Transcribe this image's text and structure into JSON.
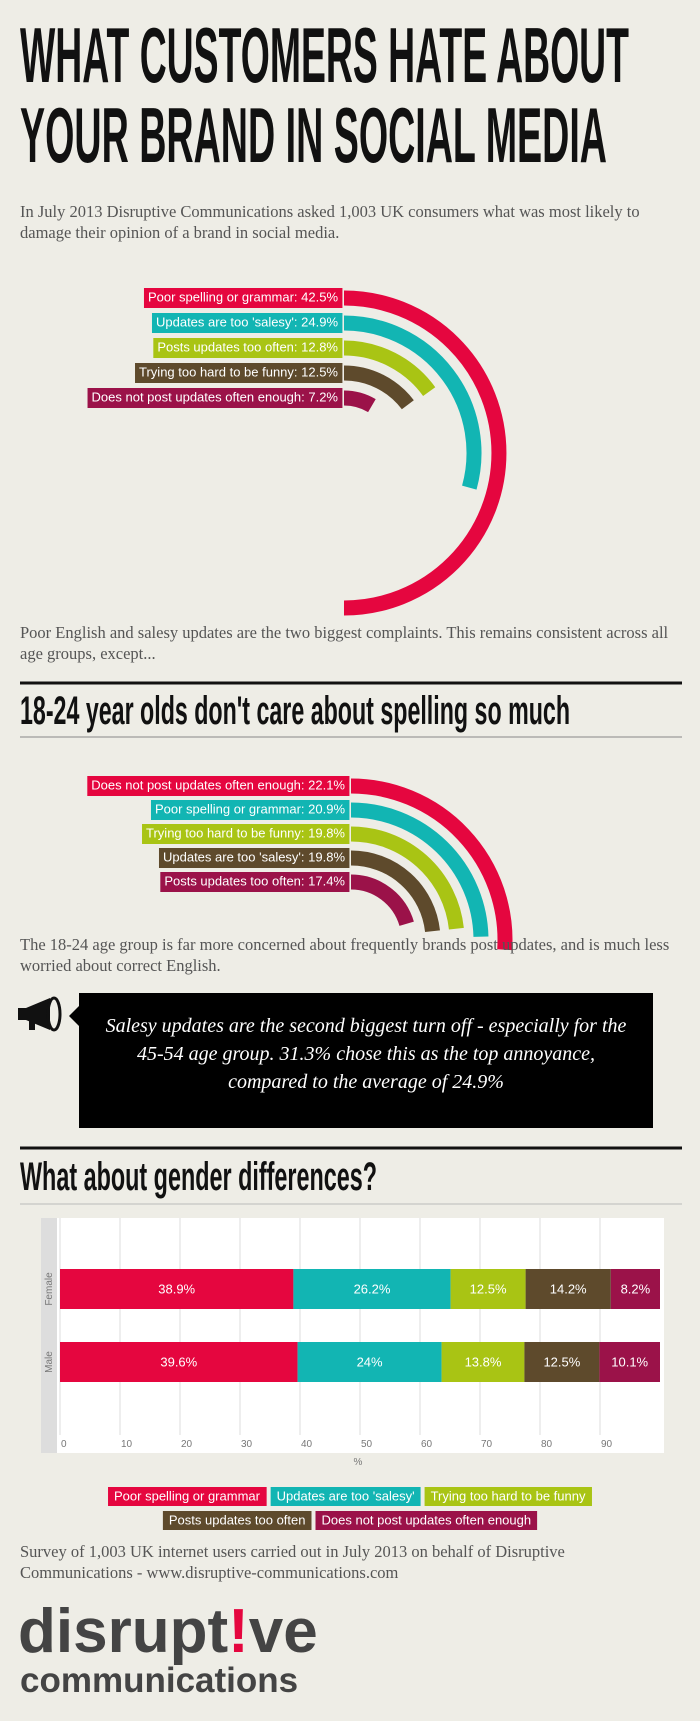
{
  "header": {
    "title": [
      "WHAT CUSTOMERS HATE ABOUT",
      "YOUR BRAND IN SOCIAL MEDIA"
    ],
    "intro": "In July 2013 Disruptive Communications asked 1,003 UK consumers what was most likely to damage their opinion of a brand in social media."
  },
  "chart_data": [
    {
      "type": "radial_bar",
      "rlim": [
        0,
        85
      ],
      "values": [
        42.5,
        24.9,
        12.8,
        12.5,
        7.2
      ],
      "value_labels": [
        "Poor spelling or grammar: 42.5%",
        "Updates are too 'salesy': 24.9%",
        "Posts updates too often: 12.8%",
        "Trying too hard to be funny: 12.5%",
        "Does not post updates often enough: 7.2%"
      ],
      "colors": [
        "#e5063f",
        "#12b5b3",
        "#a9c414",
        "#5e4a2c",
        "#9b1249"
      ]
    },
    {
      "type": "radial_bar",
      "title": "18-24 year olds don't care about spelling so much",
      "rlim": [
        0,
        85
      ],
      "values": [
        22.1,
        20.9,
        19.8,
        19.8,
        17.4
      ],
      "value_labels": [
        "Does not post updates often enough: 22.1%",
        "Poor spelling or grammar: 20.9%",
        "Trying too hard to be funny: 19.8%",
        "Updates are too 'salesy': 19.8%",
        "Posts updates too often: 17.4%"
      ],
      "colors": [
        "#e5063f",
        "#12b5b3",
        "#a9c414",
        "#5e4a2c",
        "#9b1249"
      ]
    },
    {
      "type": "stacked_barh",
      "title": "What about gender differences?",
      "categories": [
        "Female",
        "Male"
      ],
      "series": [
        {
          "name": "Poor spelling or grammar",
          "color": "#e5063f",
          "values": [
            38.9,
            39.6
          ],
          "value_labels": [
            "38.9%",
            "39.6%"
          ]
        },
        {
          "name": "Updates are too 'salesy'",
          "color": "#12b5b3",
          "values": [
            26.2,
            24
          ],
          "value_labels": [
            "26.2%",
            "24%"
          ]
        },
        {
          "name": "Trying too hard to be funny",
          "color": "#a9c414",
          "values": [
            12.5,
            13.8
          ],
          "value_labels": [
            "12.5%",
            "13.8%"
          ]
        },
        {
          "name": "Posts updates too often",
          "color": "#5e4a2c",
          "values": [
            14.2,
            12.5
          ],
          "value_labels": [
            "14.2%",
            "12.5%"
          ]
        },
        {
          "name": "Does not post updates often enough",
          "color": "#9b1249",
          "values": [
            8.2,
            10.1
          ],
          "value_labels": [
            "8.2%",
            "10.1%"
          ]
        }
      ],
      "xlim": [
        0,
        100
      ],
      "xticks": [
        0,
        10,
        20,
        30,
        40,
        50,
        60,
        70,
        80,
        90
      ],
      "xlabel": "%",
      "grid": true
    }
  ],
  "body": {
    "after_chart_1": "Poor English and salesy updates are the two biggest complaints. This remains consistent across all age groups, except...",
    "after_chart_2": "The 18-24 age group is far more concerned about frequently brands post updates, and is much less worried about correct English.",
    "callout": "Salesy updates are the second biggest turn off - especially for the 45-54 age group. 31.3% chose this as the top annoyance, compared to the average of 24.9%"
  },
  "footer": {
    "source": "Survey of 1,003 UK internet users carried out in July 2013 on behalf of Disruptive Communications - www.disruptive-communications.com",
    "logo": {
      "name": [
        "disrupt",
        "!",
        "ve"
      ],
      "tagline": "communications"
    }
  }
}
